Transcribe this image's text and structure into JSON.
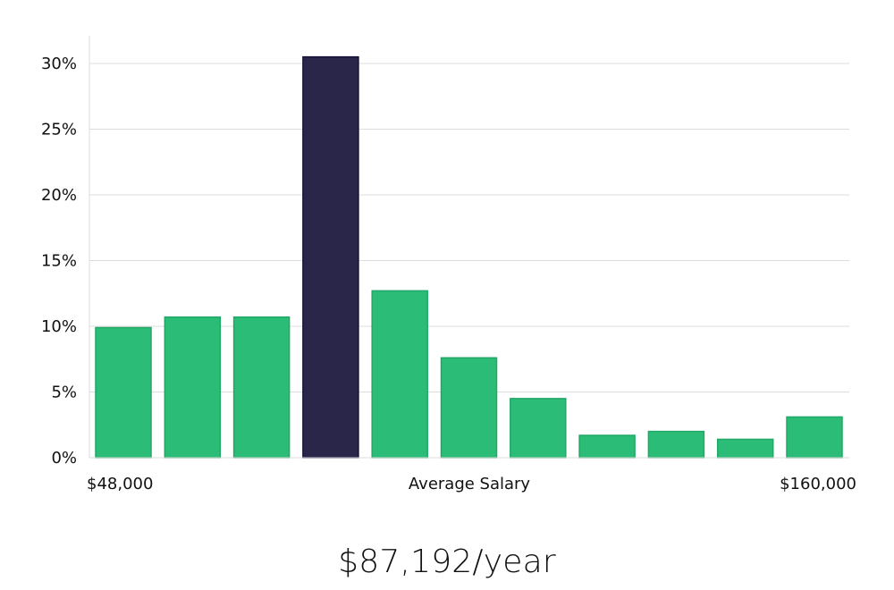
{
  "chart_data": {
    "type": "bar",
    "title": "",
    "xlabel": "Average Salary",
    "ylabel": "",
    "x_start_label": "$48,000",
    "x_end_label": "$160,000",
    "y_ticks": [
      "0%",
      "5%",
      "10%",
      "15%",
      "20%",
      "25%",
      "30%"
    ],
    "y_tick_values": [
      0,
      5,
      10,
      15,
      20,
      25,
      30
    ],
    "ylim": [
      0,
      32
    ],
    "grid": true,
    "values": [
      9.9,
      10.7,
      10.7,
      30.5,
      12.7,
      7.6,
      4.5,
      1.7,
      2.0,
      1.4,
      3.1
    ],
    "highlight_index": 3,
    "colors": {
      "bar": "#2bbd77",
      "bar_stroke": "#22a866",
      "highlight": "#29264a",
      "highlight_stroke": "#15123a",
      "grid": "#dcdcdc"
    }
  },
  "summary": {
    "salary_text": "$87,192/year"
  }
}
